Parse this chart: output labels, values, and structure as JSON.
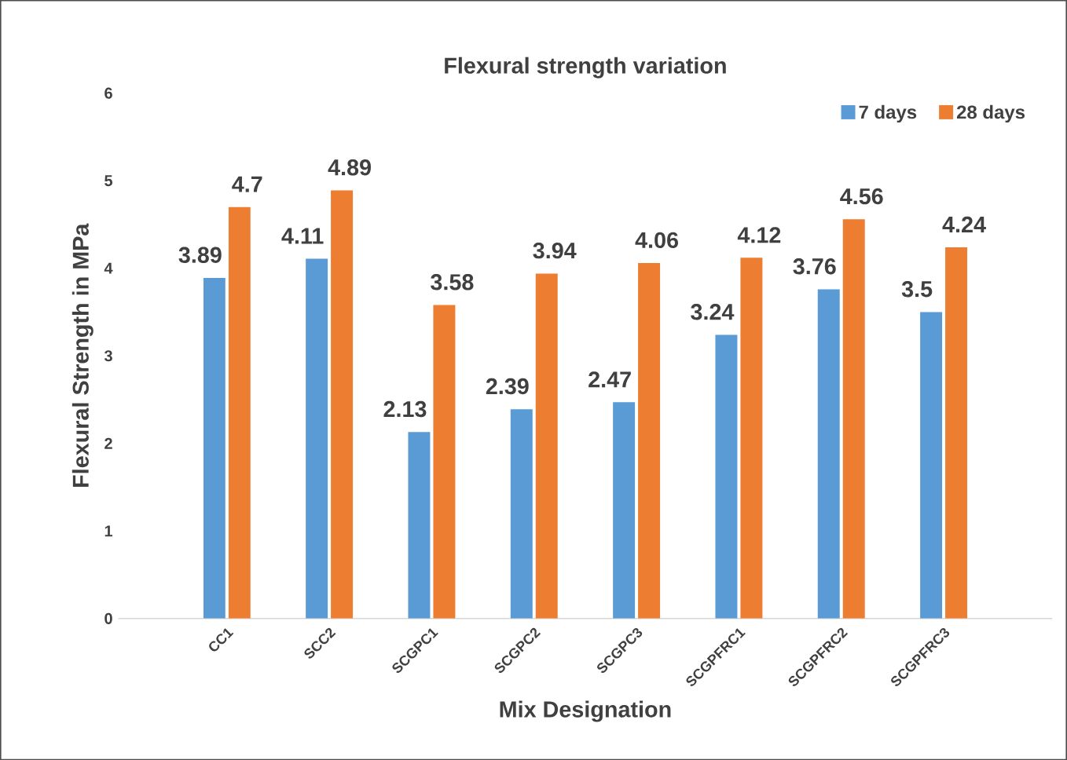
{
  "chart_data": {
    "type": "bar",
    "title": "Flexural strength variation",
    "xlabel": "Mix Designation",
    "ylabel": "Flexural Strength in MPa",
    "categories": [
      "CC1",
      "SCC2",
      "SCGPC1",
      "SCGPC2",
      "SCGPC3",
      "SCGPFRC1",
      "SCGPFRC2",
      "SCGPFRC3"
    ],
    "series": [
      {
        "name": "7 days",
        "color": "#5b9bd5",
        "values": [
          3.89,
          4.11,
          2.13,
          2.39,
          2.47,
          3.24,
          3.76,
          3.5
        ]
      },
      {
        "name": "28 days",
        "color": "#ed7d31",
        "values": [
          4.7,
          4.89,
          3.58,
          3.94,
          4.06,
          4.12,
          4.56,
          4.24
        ]
      }
    ],
    "ylim": [
      0,
      6
    ],
    "yticks": [
      0,
      1,
      2,
      3,
      4,
      5,
      6
    ],
    "grid": false,
    "legend": "top right",
    "data_labels": true
  }
}
